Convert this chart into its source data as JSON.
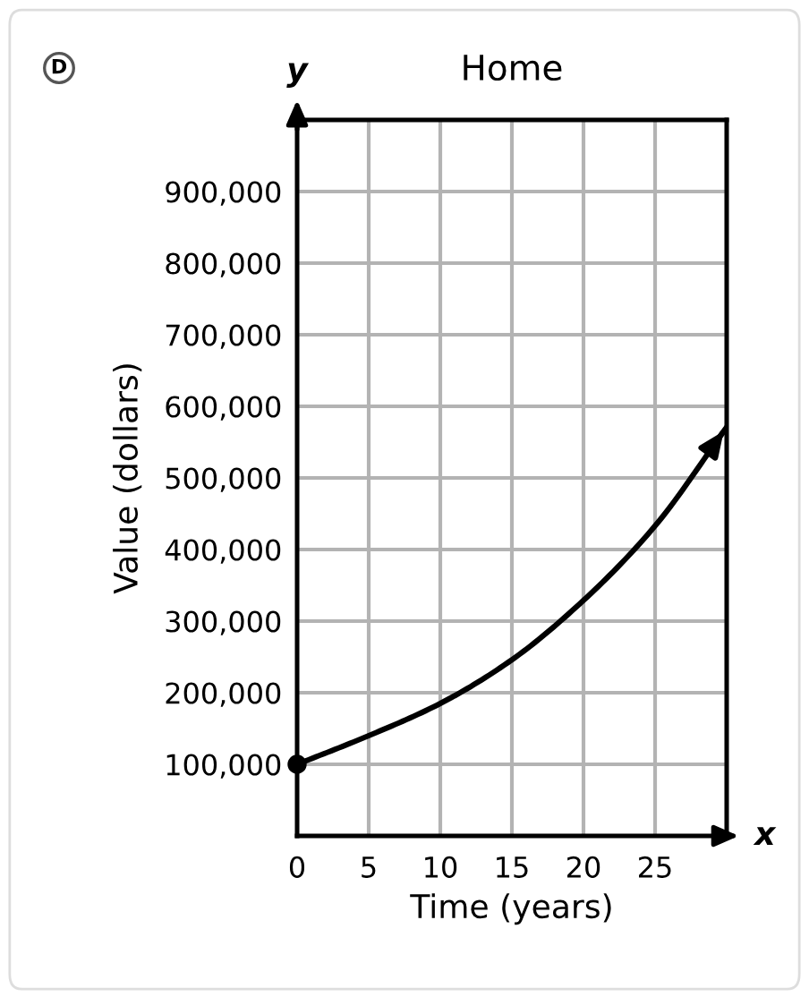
{
  "chart_data": {
    "type": "line",
    "title": "Home",
    "xlabel": "Time (years)",
    "ylabel": "Value (dollars)",
    "annotations": [
      "D",
      "y",
      "x"
    ],
    "series": [
      {
        "color": "#000000",
        "marker": "none",
        "x": [
          0,
          5,
          10,
          15,
          20,
          25,
          30
        ],
        "values": [
          100000,
          140000,
          185000,
          246000,
          329000,
          433000,
          571000
        ]
      },
      {
        "type": "scatter",
        "color": "#000000",
        "marker": "circle",
        "x": [
          0
        ],
        "values": [
          100000
        ]
      }
    ],
    "xlim": [
      0,
      30
    ],
    "ylim": [
      0,
      1000000
    ],
    "xticks": [
      0,
      5,
      10,
      15,
      20,
      25,
      {
        "value": 30,
        "label": null
      }
    ],
    "yticks": [
      {
        "value": 0,
        "label": null
      },
      {
        "value": 100000,
        "label": "100,000"
      },
      {
        "value": 200000,
        "label": "200,000"
      },
      {
        "value": 300000,
        "label": "300,000"
      },
      {
        "value": 400000,
        "label": "400,000"
      },
      {
        "value": 500000,
        "label": "500,000"
      },
      {
        "value": 600000,
        "label": "600,000"
      },
      {
        "value": 700000,
        "label": "700,000"
      },
      {
        "value": 800000,
        "label": "800,000"
      },
      {
        "value": 900000,
        "label": "900,000"
      },
      {
        "value": 1000000,
        "label": null
      }
    ],
    "grid": true
  }
}
